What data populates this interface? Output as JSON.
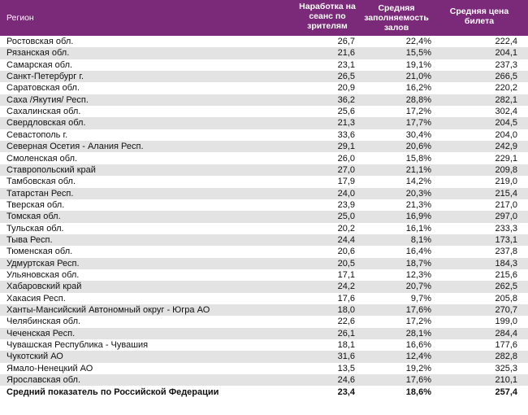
{
  "table": {
    "header": [
      "Регион",
      "Наработка на сеанс по зрителям",
      "Средняя заполняемость залов",
      "Средняя цена билета"
    ],
    "rows": [
      [
        "Ростовская обл.",
        "26,7",
        "22,4%",
        "222,4"
      ],
      [
        "Рязанская обл.",
        "21,6",
        "15,5%",
        "204,1"
      ],
      [
        "Самарская обл.",
        "23,1",
        "19,1%",
        "237,3"
      ],
      [
        "Санкт-Петербург г.",
        "26,5",
        "21,0%",
        "266,5"
      ],
      [
        "Саратовская обл.",
        "20,9",
        "16,2%",
        "220,2"
      ],
      [
        "Саха /Якутия/ Респ.",
        "36,2",
        "28,8%",
        "282,1"
      ],
      [
        "Сахалинская обл.",
        "25,6",
        "17,2%",
        "302,4"
      ],
      [
        "Свердловская обл.",
        "21,3",
        "17,7%",
        "204,5"
      ],
      [
        "Севастополь г.",
        "33,6",
        "30,4%",
        "204,0"
      ],
      [
        "Северная Осетия - Алания Респ.",
        "29,1",
        "20,6%",
        "242,9"
      ],
      [
        "Смоленская обл.",
        "26,0",
        "15,8%",
        "229,1"
      ],
      [
        "Ставропольский край",
        "27,0",
        "21,1%",
        "209,8"
      ],
      [
        "Тамбовская обл.",
        "17,9",
        "14,2%",
        "219,0"
      ],
      [
        "Татарстан Респ.",
        "24,0",
        "20,3%",
        "215,4"
      ],
      [
        "Тверская обл.",
        "23,9",
        "21,3%",
        "217,0"
      ],
      [
        "Томская обл.",
        "25,0",
        "16,9%",
        "297,0"
      ],
      [
        "Тульская обл.",
        "20,2",
        "16,1%",
        "233,3"
      ],
      [
        "Тыва Респ.",
        "24,4",
        "8,1%",
        "173,1"
      ],
      [
        "Тюменская обл.",
        "20,6",
        "16,4%",
        "237,8"
      ],
      [
        "Удмуртская Респ.",
        "20,5",
        "18,7%",
        "184,3"
      ],
      [
        "Ульяновская обл.",
        "17,1",
        "12,3%",
        "215,6"
      ],
      [
        "Хабаровский край",
        "24,2",
        "20,7%",
        "262,5"
      ],
      [
        "Хакасия Респ.",
        "17,6",
        "9,7%",
        "205,8"
      ],
      [
        "Ханты-Мансийский Автономный округ - Югра АО",
        "18,0",
        "17,6%",
        "270,7"
      ],
      [
        "Челябинская обл.",
        "22,6",
        "17,2%",
        "199,0"
      ],
      [
        "Чеченская Респ.",
        "26,1",
        "28,1%",
        "284,4"
      ],
      [
        "Чувашская Республика - Чувашия",
        "18,1",
        "16,6%",
        "177,6"
      ],
      [
        "Чукотский АО",
        "31,6",
        "12,4%",
        "282,8"
      ],
      [
        "Ямало-Ненецкий АО",
        "13,5",
        "19,2%",
        "325,3"
      ],
      [
        "Ярославская обл.",
        "24,6",
        "17,6%",
        "210,1"
      ]
    ],
    "total": [
      "Средний показатель по Российской Федерации",
      "23,4",
      "18,6%",
      "257,4"
    ]
  }
}
